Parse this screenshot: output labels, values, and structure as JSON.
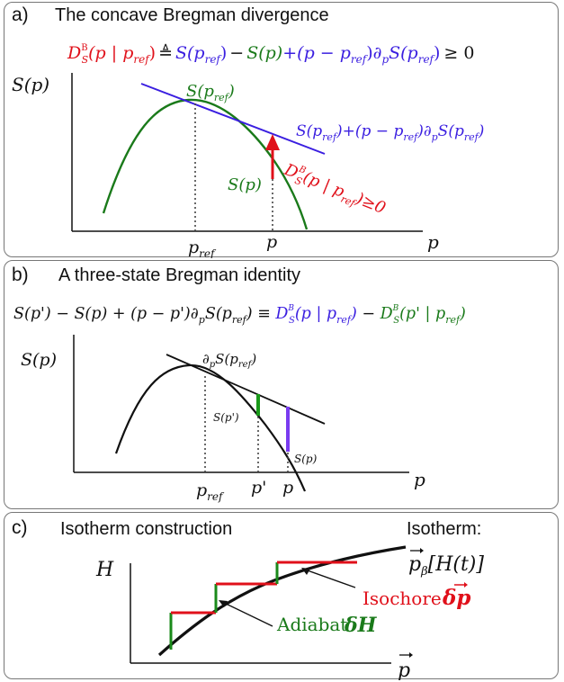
{
  "panel_a": {
    "label": "a)",
    "title": "The concave Bregman divergence",
    "equation": {
      "lhs_D": "D",
      "lhs_sup": "B",
      "lhs_sub": "S",
      "lhs_args": "(p | p",
      "lhs_ref": "ref",
      "lhs_close": ")",
      "defeq": "≜",
      "S1": "S",
      "S1_arg": "(p",
      "S1_ref": "ref",
      "S1_close": ")",
      "minus": "−",
      "S2": "S(p)",
      "plus_term": "+(p − p",
      "plus_ref": "ref",
      "plus_close": ")∂",
      "partial_sub": "p",
      "S3": "S(p",
      "S3_ref": "ref",
      "S3_close": ")",
      "ineq": "≥ 0"
    },
    "y_label": "S(p)",
    "x_label": "p",
    "tick_pref": "p",
    "tick_pref_sub": "ref",
    "tick_p": "p",
    "label_S_pref": "S(p",
    "label_S_pref_sub": "ref",
    "label_S_pref_close": ")",
    "label_tangent": "S(p",
    "label_tangent_sub": "ref",
    "label_tangent_mid": ")+(p − p",
    "label_tangent_sub2": "ref",
    "label_tangent_mid2": ")∂",
    "label_tangent_psub": "p",
    "label_tangent_S": "S(p",
    "label_tangent_sub3": "ref",
    "label_tangent_end": ")",
    "label_S_p": "S(p)",
    "divergence_label": "D",
    "divergence_sup": "B",
    "divergence_sub": "S",
    "divergence_args": "(p | p",
    "divergence_ref": "ref",
    "divergence_end": ")≥0"
  },
  "panel_b": {
    "label": "b)",
    "title": "A three-state Bregman identity",
    "equation": {
      "part1": "S(p') − S(p) + (p − p')∂",
      "psub": "p",
      "part2": "S(p",
      "ref": "ref",
      "part3": ") ≡ ",
      "D1": "D",
      "D1_sup": "B",
      "D1_sub": "S",
      "D1_args": "(p | p",
      "D1_ref": "ref",
      "D1_close": ")",
      "minus": " − ",
      "D2": "D",
      "D2_sup": "B",
      "D2_sub": "S",
      "D2_args": "(p' | p",
      "D2_ref": "ref",
      "D2_close": ")"
    },
    "y_label": "S(p)",
    "x_label": "p",
    "tick_pref": "p",
    "tick_pref_sub": "ref",
    "tick_pprime": "p'",
    "tick_p": "p",
    "label_slope": "∂",
    "label_slope_sub": "p",
    "label_slope_S": "S(p",
    "label_slope_ref": "ref",
    "label_slope_close": ")",
    "label_S_pprime": "S(p')",
    "label_S_p": "S(p)"
  },
  "panel_c": {
    "label": "c)",
    "title": "Isotherm construction",
    "isotherm_label": "Isotherm:",
    "isotherm_formula": "p",
    "isotherm_sub": "β",
    "isotherm_arg": "[H(t)]",
    "y_label": "H",
    "x_label": "p",
    "isochore_label": "Isochore",
    "isochore_symbol": "δp",
    "adiabat_label": "Adiabat",
    "adiabat_symbol": "δH"
  },
  "colors": {
    "red": "#e0101a",
    "green": "#1a7a1a",
    "blue": "#3a1ee0",
    "purple": "#7a3cf0",
    "black": "#111111",
    "border": "#777777"
  }
}
